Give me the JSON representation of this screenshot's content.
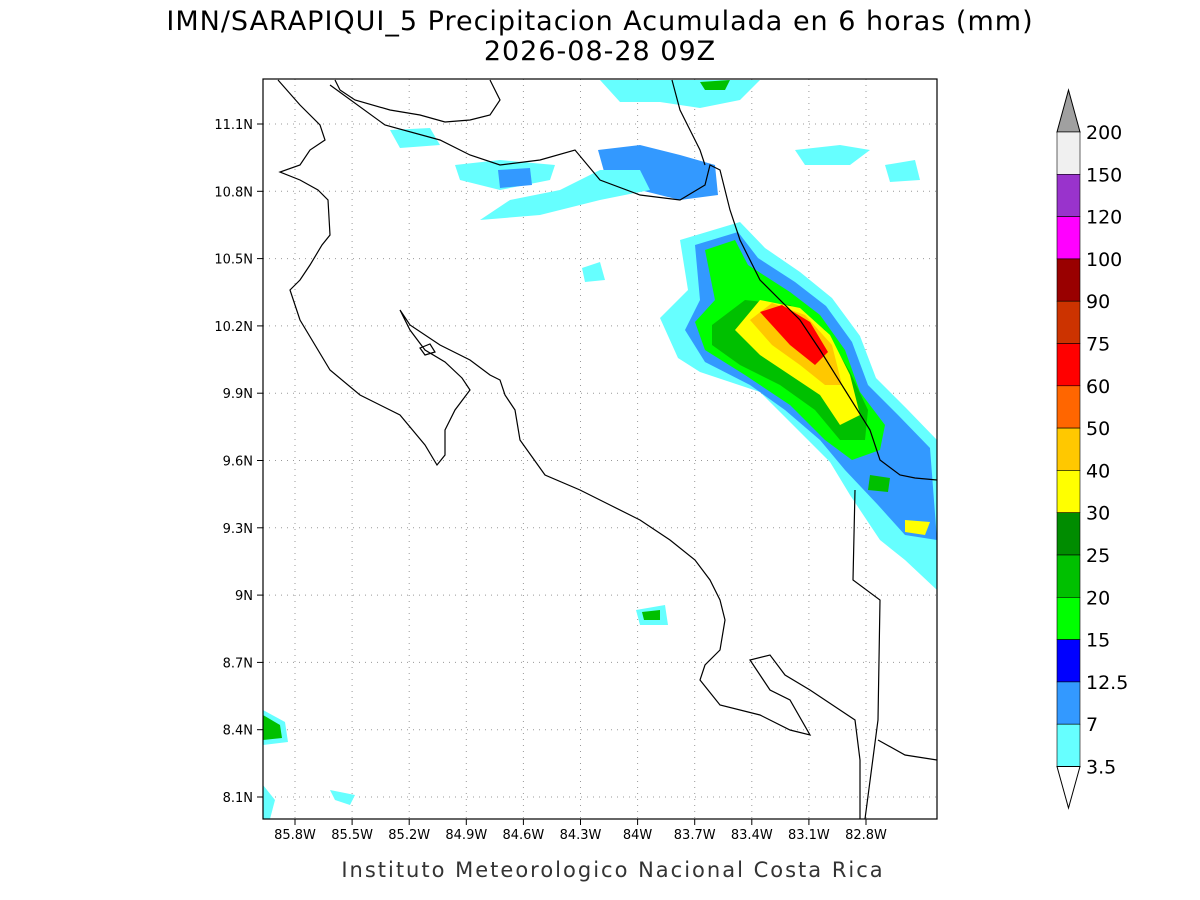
{
  "header": {
    "title": "IMN/SARAPIQUI_5 Precipitacion Acumulada en 6 horas (mm)",
    "subtitle": "2026-08-28 09Z"
  },
  "map": {
    "x_tick_labels": [
      "85.8W",
      "85.5W",
      "85.2W",
      "84.9W",
      "84.6W",
      "84.3W",
      "84W",
      "83.7W",
      "83.4W",
      "83.1W",
      "82.8W"
    ],
    "y_tick_labels": [
      "11.1N",
      "10.8N",
      "10.5N",
      "10.2N",
      "9.9N",
      "9.6N",
      "9.3N",
      "9N",
      "8.7N",
      "8.4N",
      "8.1N"
    ]
  },
  "colorbar": {
    "top_color": "#a0a0a0",
    "bottom_color": "#ffffff",
    "labels": [
      "200",
      "150",
      "120",
      "100",
      "90",
      "75",
      "60",
      "50",
      "40",
      "30",
      "25",
      "20",
      "15",
      "12.5",
      "7",
      "3.5"
    ],
    "colors": [
      "#f0f0f0",
      "#9933cc",
      "#ff00ff",
      "#990000",
      "#cc3300",
      "#ff0000",
      "#ff6600",
      "#ffc800",
      "#ffff00",
      "#008c00",
      "#00c000",
      "#00ff00",
      "#0000ff",
      "#3399ff",
      "#66ffff"
    ]
  },
  "footer": {
    "credit": "Instituto Meteorologico Nacional Costa Rica"
  }
}
